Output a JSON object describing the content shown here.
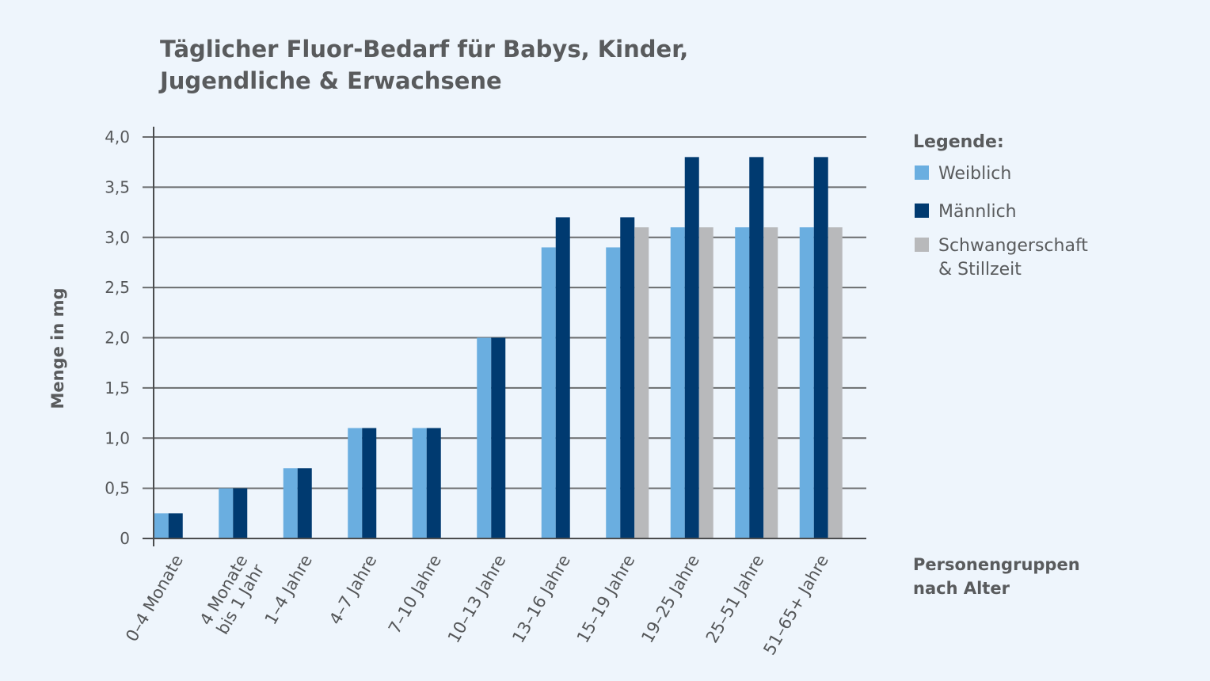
{
  "chart_data": {
    "type": "bar",
    "title": [
      "Täglicher Fluor-Bedarf für Babys, Kinder,",
      "Jugendliche & Erwachsene"
    ],
    "ylabel": "Menge in mg",
    "xlabel": [
      "Personengruppen",
      "nach Alter"
    ],
    "ylim": [
      0,
      4.0
    ],
    "yticks": [
      {
        "value": 0,
        "label": "0"
      },
      {
        "value": 0.5,
        "label": "0,5"
      },
      {
        "value": 1.0,
        "label": "1,0"
      },
      {
        "value": 1.5,
        "label": "1,5"
      },
      {
        "value": 2.0,
        "label": "2,0"
      },
      {
        "value": 2.5,
        "label": "2,5"
      },
      {
        "value": 3.0,
        "label": "3,0"
      },
      {
        "value": 3.5,
        "label": "3,5"
      },
      {
        "value": 4.0,
        "label": "4,0"
      }
    ],
    "grid": true,
    "categories": [
      [
        "0–4 Monate"
      ],
      [
        "4 Monate",
        "bis 1 Jahr"
      ],
      [
        "1–4 Jahre"
      ],
      [
        "4–7 Jahre"
      ],
      [
        "7–10 Jahre"
      ],
      [
        "10–13 Jahre"
      ],
      [
        "13–16 Jahre"
      ],
      [
        "15–19 Jahre"
      ],
      [
        "19–25 Jahre"
      ],
      [
        "25–51 Jahre"
      ],
      [
        "51–65+ Jahre"
      ]
    ],
    "series": [
      {
        "name": "Weiblich",
        "color": "#6aaee0",
        "values": [
          0.25,
          0.5,
          0.7,
          1.1,
          1.1,
          2.0,
          2.9,
          2.9,
          3.1,
          3.1,
          3.1
        ]
      },
      {
        "name": "Männlich",
        "color": "#003a70",
        "values": [
          0.25,
          0.5,
          0.7,
          1.1,
          1.1,
          2.0,
          3.2,
          3.2,
          3.8,
          3.8,
          3.8
        ]
      },
      {
        "name": "Schwangerschaft & Stillzeit",
        "color": "#b8b9bb",
        "values": [
          null,
          null,
          null,
          null,
          null,
          null,
          null,
          3.1,
          3.1,
          3.1,
          3.1
        ]
      }
    ],
    "legend": {
      "title": "Legende:",
      "position": "right",
      "entries": [
        {
          "lines": [
            "Weiblich"
          ],
          "color": "#6aaee0"
        },
        {
          "lines": [
            "Männlich"
          ],
          "color": "#003a70"
        },
        {
          "lines": [
            "Schwangerschaft",
            "& Stillzeit"
          ],
          "color": "#b8b9bb"
        }
      ]
    }
  }
}
